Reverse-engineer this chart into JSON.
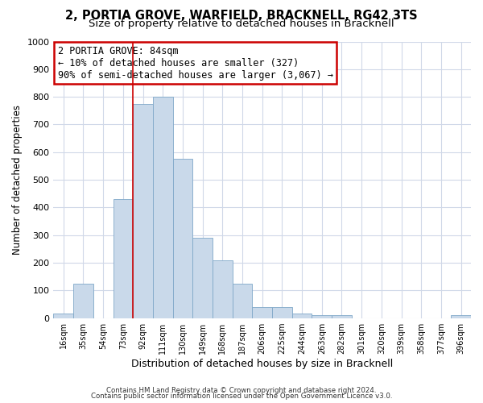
{
  "title": "2, PORTIA GROVE, WARFIELD, BRACKNELL, RG42 3TS",
  "subtitle": "Size of property relative to detached houses in Bracknell",
  "xlabel": "Distribution of detached houses by size in Bracknell",
  "ylabel": "Number of detached properties",
  "bar_color": "#c9d9ea",
  "bar_edge_color": "#7fa8c8",
  "categories": [
    "16sqm",
    "35sqm",
    "54sqm",
    "73sqm",
    "92sqm",
    "111sqm",
    "130sqm",
    "149sqm",
    "168sqm",
    "187sqm",
    "206sqm",
    "225sqm",
    "244sqm",
    "263sqm",
    "282sqm",
    "301sqm",
    "320sqm",
    "339sqm",
    "358sqm",
    "377sqm",
    "396sqm"
  ],
  "values": [
    15,
    125,
    0,
    430,
    775,
    800,
    575,
    290,
    210,
    125,
    40,
    40,
    15,
    10,
    10,
    0,
    0,
    0,
    0,
    0,
    10
  ],
  "ylim": [
    0,
    1000
  ],
  "yticks": [
    0,
    100,
    200,
    300,
    400,
    500,
    600,
    700,
    800,
    900,
    1000
  ],
  "vline_x": 4,
  "vline_color": "#cc0000",
  "annotation_title": "2 PORTIA GROVE: 84sqm",
  "annotation_line1": "← 10% of detached houses are smaller (327)",
  "annotation_line2": "90% of semi-detached houses are larger (3,067) →",
  "annotation_box_color": "#ffffff",
  "annotation_box_edge_color": "#cc0000",
  "footer_line1": "Contains HM Land Registry data © Crown copyright and database right 2024.",
  "footer_line2": "Contains public sector information licensed under the Open Government Licence v3.0.",
  "background_color": "#ffffff",
  "grid_color": "#d0d8e8",
  "title_fontsize": 10.5,
  "subtitle_fontsize": 9.5
}
